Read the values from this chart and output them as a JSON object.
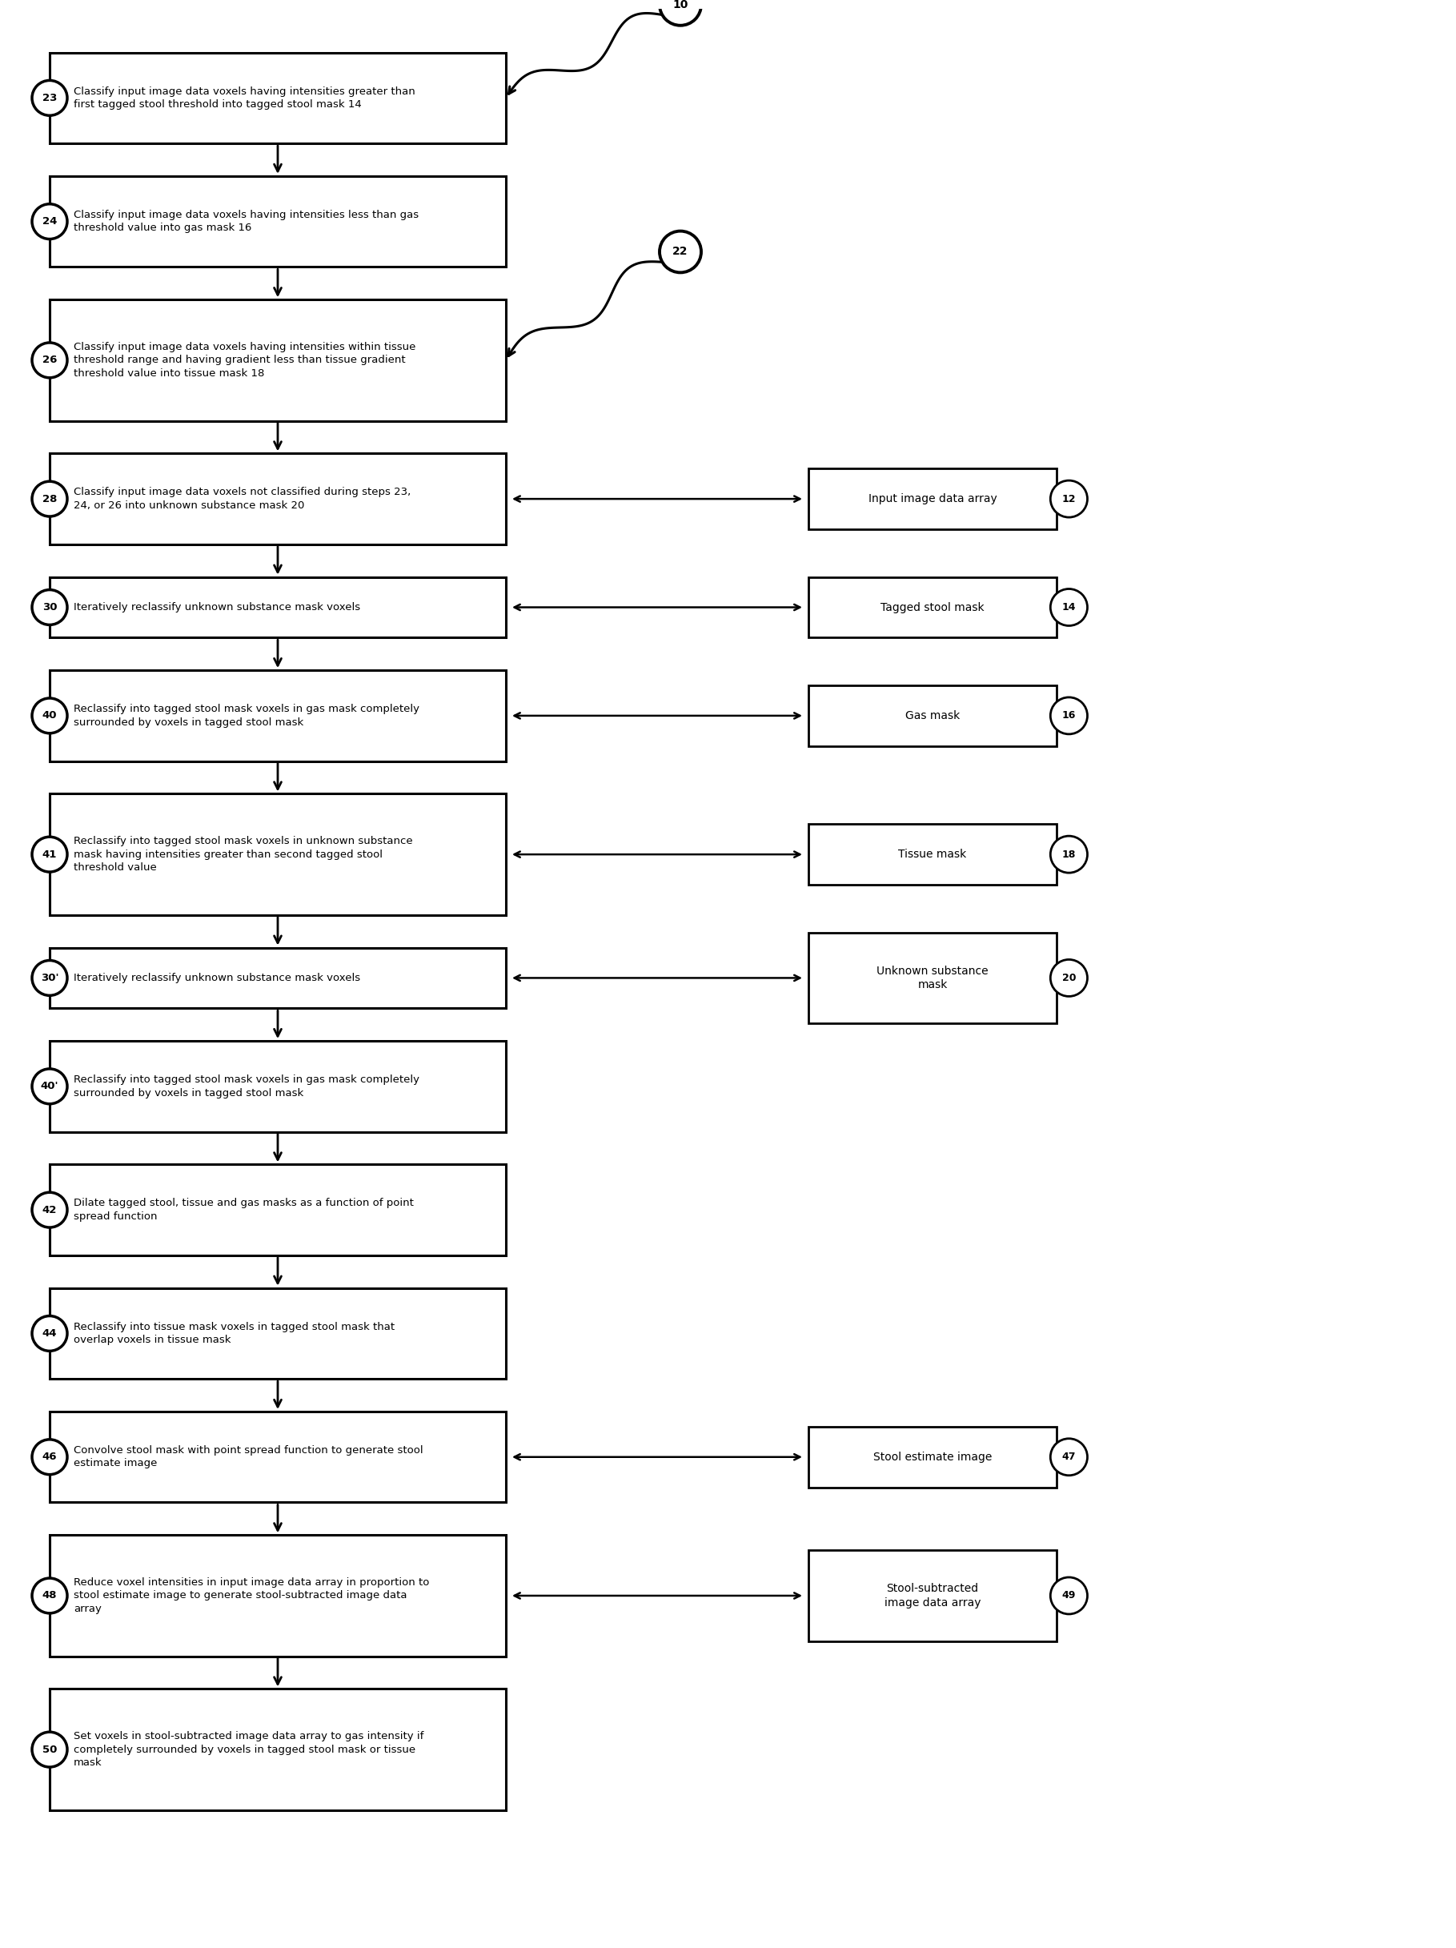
{
  "steps": [
    {
      "id": "23",
      "text": "Classify input image data voxels having intensities greater than\nfirst tagged stool threshold into tagged stool mask 14",
      "nlines": 2
    },
    {
      "id": "24",
      "text": "Classify input image data voxels having intensities less than gas\nthreshold value into gas mask 16",
      "nlines": 2
    },
    {
      "id": "26",
      "text": "Classify input image data voxels having intensities within tissue\nthreshold range and having gradient less than tissue gradient\nthreshold value into tissue mask 18",
      "nlines": 3
    },
    {
      "id": "28",
      "text": "Classify input image data voxels not classified during steps 23,\n24, or 26 into unknown substance mask 20",
      "nlines": 2
    },
    {
      "id": "30",
      "text": "Iteratively reclassify unknown substance mask voxels",
      "nlines": 1
    },
    {
      "id": "40",
      "text": "Reclassify into tagged stool mask voxels in gas mask completely\nsurrounded by voxels in tagged stool mask",
      "nlines": 2
    },
    {
      "id": "41",
      "text": "Reclassify into tagged stool mask voxels in unknown substance\nmask having intensities greater than second tagged stool\nthreshold value",
      "nlines": 3
    },
    {
      "id": "30'",
      "text": "Iteratively reclassify unknown substance mask voxels",
      "nlines": 1
    },
    {
      "id": "40'",
      "text": "Reclassify into tagged stool mask voxels in gas mask completely\nsurrounded by voxels in tagged stool mask",
      "nlines": 2
    },
    {
      "id": "42",
      "text": "Dilate tagged stool, tissue and gas masks as a function of point\nspread function",
      "nlines": 2
    },
    {
      "id": "44",
      "text": "Reclassify into tissue mask voxels in tagged stool mask that\noverlap voxels in tissue mask",
      "nlines": 2
    },
    {
      "id": "46",
      "text": "Convolve stool mask with point spread function to generate stool\nestimate image",
      "nlines": 2
    },
    {
      "id": "48",
      "text": "Reduce voxel intensities in input image data array in proportion to\nstool estimate image to generate stool-subtracted image data\narray",
      "nlines": 3
    },
    {
      "id": "50",
      "text": "Set voxels in stool-subtracted image data array to gas intensity if\ncompletely surrounded by voxels in tagged stool mask or tissue\nmask",
      "nlines": 3
    }
  ],
  "right_cylinders": [
    {
      "id": "12",
      "label": "Input image data array",
      "nlines": 1,
      "align_step": 3
    },
    {
      "id": "14",
      "label": "Tagged stool mask",
      "nlines": 1,
      "align_step": 4
    },
    {
      "id": "16",
      "label": "Gas mask",
      "nlines": 1,
      "align_step": 5
    },
    {
      "id": "18",
      "label": "Tissue mask",
      "nlines": 1,
      "align_step": 6
    },
    {
      "id": "20",
      "label": "Unknown substance\nmask",
      "nlines": 2,
      "align_step": 7
    },
    {
      "id": "47",
      "label": "Stool estimate image",
      "nlines": 1,
      "align_step": 11
    },
    {
      "id": "49",
      "label": "Stool-subtracted\nimage data array",
      "nlines": 2,
      "align_step": 12
    }
  ],
  "wavy_nodes": [
    {
      "id": "10",
      "align_step": 0
    },
    {
      "id": "22",
      "align_step": 2
    }
  ]
}
